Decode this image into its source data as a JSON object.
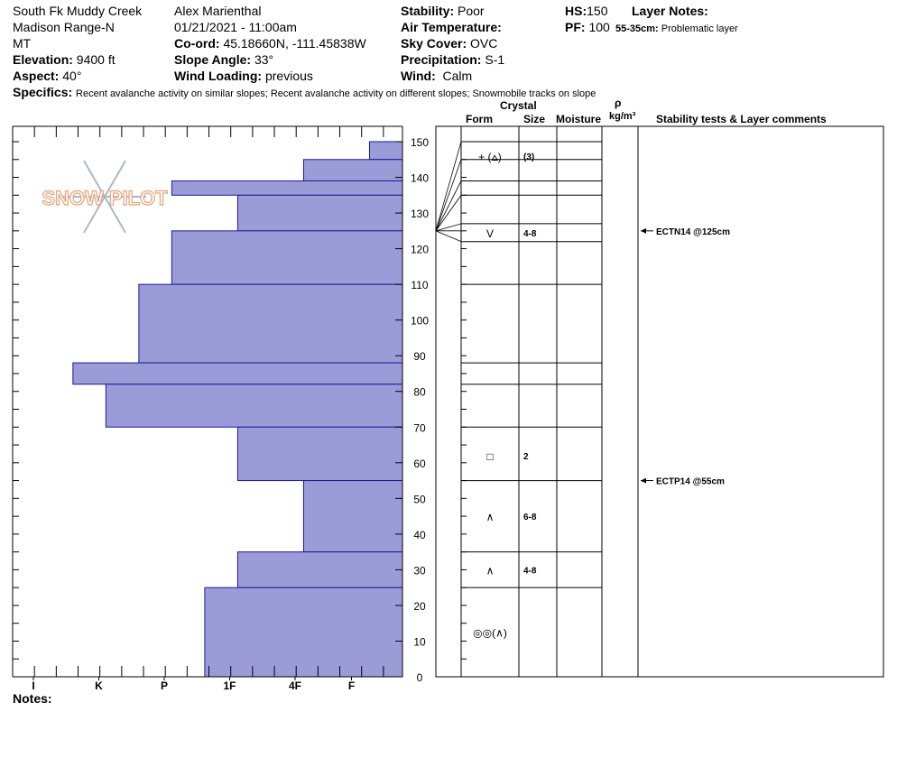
{
  "header": {
    "location": "South Fk Muddy Creek",
    "range": "Madison Range-N",
    "state": "MT",
    "elevation_label": "Elevation:",
    "elevation": "9400 ft",
    "aspect_label": "Aspect:",
    "aspect": "40°",
    "observer": "Alex Marienthal",
    "datetime": "01/21/2021 - 11:00am",
    "coord_label": "Co-ord:",
    "coord": "45.18660N, -111.45838W",
    "slope_label": "Slope Angle:",
    "slope": "33°",
    "wind_loading_label": "Wind Loading:",
    "wind_loading": "previous",
    "stability_label": "Stability:",
    "stability": "Poor",
    "air_temp_label": "Air Temperature:",
    "sky_label": "Sky Cover:",
    "sky": "OVC",
    "precip_label": "Precipitation:",
    "precip": "S-1",
    "wind_label": "Wind:",
    "wind": "Calm",
    "hs_label": "HS:",
    "hs": "150",
    "pf_label": "PF:",
    "pf": "100",
    "layer_notes_label": "Layer Notes:",
    "layer_note_range": "55-35cm:",
    "layer_note_text": "Problematic layer",
    "specifics_label": "Specifics:",
    "specifics": "Recent avalanche activity on similar slopes; Recent avalanche activity on different slopes;  Snowmobile tracks on slope"
  },
  "columns": {
    "crystal": "Crystal",
    "form": "Form",
    "size": "Size",
    "moisture": "Moisture",
    "rho": "ρ",
    "density_unit": "kg/m³",
    "stability_comments": "Stability tests & Layer comments"
  },
  "logo_text": "SNOW PILOT",
  "notes_label": "Notes:",
  "colors": {
    "bar_fill": "#9b9bd8",
    "bar_stroke": "#1a1a9a",
    "logo": "#e8a37a",
    "flake": "#aab8c8"
  },
  "chart_data": {
    "type": "bar",
    "orientation": "horizontal",
    "ylim": [
      0,
      150
    ],
    "y_ticks": [
      0,
      10,
      20,
      30,
      40,
      50,
      60,
      70,
      80,
      90,
      100,
      110,
      120,
      130,
      140,
      150
    ],
    "hardness_scale": [
      "I",
      "K",
      "P",
      "1F",
      "4F",
      "F"
    ],
    "layers": [
      {
        "top": 150,
        "bottom": 145,
        "hardness": 0.5
      },
      {
        "top": 145,
        "bottom": 139,
        "hardness": 1.5
      },
      {
        "top": 139,
        "bottom": 135,
        "hardness": 3.5
      },
      {
        "top": 135,
        "bottom": 125,
        "hardness": 2.5
      },
      {
        "top": 125,
        "bottom": 110,
        "hardness": 3.5
      },
      {
        "top": 110,
        "bottom": 88,
        "hardness": 4.0
      },
      {
        "top": 88,
        "bottom": 82,
        "hardness": 5.0
      },
      {
        "top": 82,
        "bottom": 70,
        "hardness": 4.5
      },
      {
        "top": 70,
        "bottom": 55,
        "hardness": 2.5
      },
      {
        "top": 55,
        "bottom": 35,
        "hardness": 1.5
      },
      {
        "top": 35,
        "bottom": 25,
        "hardness": 2.5
      },
      {
        "top": 25,
        "bottom": 0,
        "hardness": 3.0
      }
    ],
    "layer_boundaries": [
      150,
      145,
      139,
      135,
      127,
      122,
      110,
      88,
      82,
      70,
      55,
      35,
      25
    ],
    "crystals": [
      {
        "depth": 146,
        "form": "+ (⩟)",
        "size": "(3)"
      },
      {
        "depth": 124.5,
        "form": "V",
        "size": "4-8"
      },
      {
        "depth": 62,
        "form": "□",
        "size": "2"
      },
      {
        "depth": 45,
        "form": "∧",
        "size": "6-8"
      },
      {
        "depth": 30,
        "form": "∧",
        "size": "4-8"
      },
      {
        "depth": 12.5,
        "form": "◎◎(∧)",
        "size": ""
      }
    ],
    "tests": [
      {
        "depth": 125,
        "label": "ECTN14 @125cm"
      },
      {
        "depth": 55,
        "label": "ECTP14 @55cm"
      }
    ],
    "temp_profile_cm": [
      150,
      145,
      139,
      135,
      127,
      125,
      122
    ]
  }
}
